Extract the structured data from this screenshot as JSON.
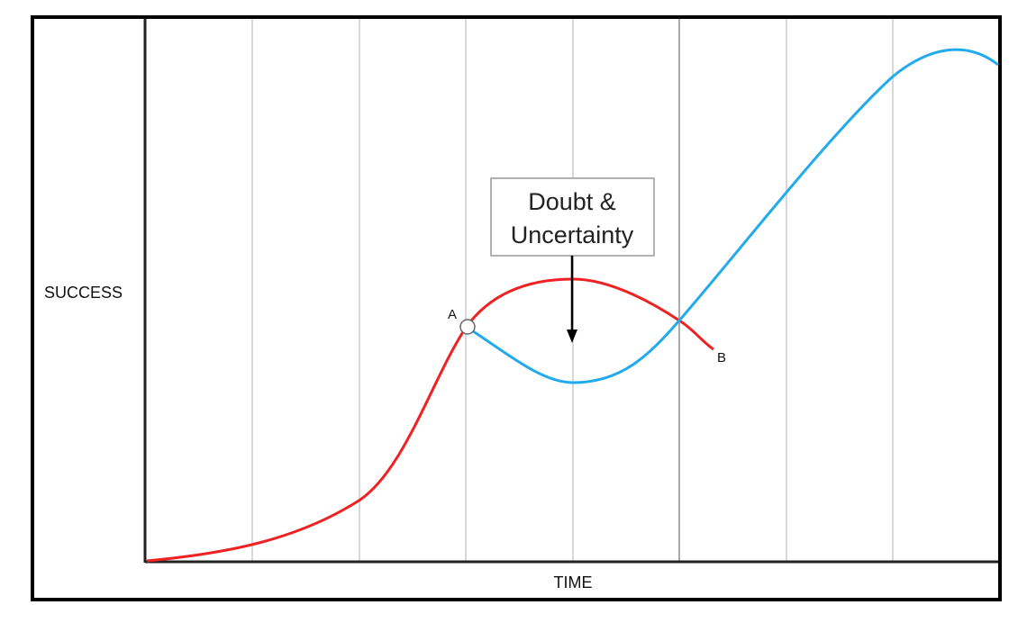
{
  "diagram": {
    "y_axis_label": "SUCCESS",
    "x_axis_label": "TIME",
    "callout": {
      "line1": "Doubt &",
      "line2": "Uncertainty"
    },
    "point_a_label": "A",
    "point_b_label": "B",
    "curves": [
      {
        "name": "expected-path",
        "color": "#ee2222"
      },
      {
        "name": "actual-path",
        "color": "#22aaee"
      }
    ],
    "colors": {
      "grid": "#cccccc",
      "axis": "#222222",
      "frame": "#000000",
      "marker_fill": "#ffffff",
      "marker_stroke": "#666666"
    }
  }
}
